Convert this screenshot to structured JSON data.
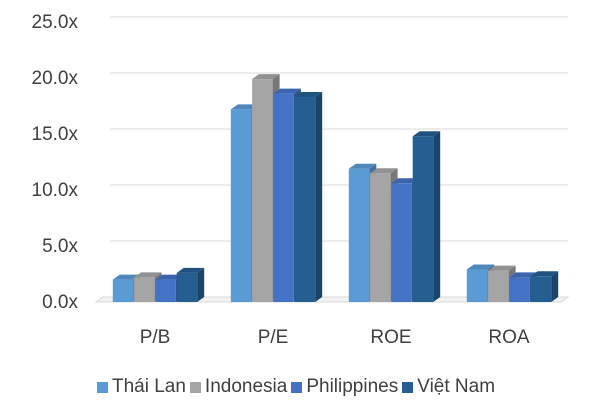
{
  "chart_data": {
    "type": "bar",
    "categories": [
      "P/B",
      "P/E",
      "ROE",
      "ROA"
    ],
    "series": [
      {
        "name": "Thái Lan",
        "values": [
          2.0,
          17.2,
          11.9,
          2.9
        ],
        "color": "#5B9BD5"
      },
      {
        "name": "Indonesia",
        "values": [
          2.2,
          19.9,
          11.5,
          2.8
        ],
        "color": "#A5A5A5"
      },
      {
        "name": "Philippines",
        "values": [
          2.0,
          18.6,
          10.6,
          2.2
        ],
        "color": "#4472C4"
      },
      {
        "name": "Việt Nam",
        "values": [
          2.6,
          18.3,
          14.8,
          2.3
        ],
        "color": "#255E91"
      }
    ],
    "yticks": [
      "0.0x",
      "5.0x",
      "10.0x",
      "15.0x",
      "20.0x",
      "25.0x"
    ],
    "ylim": [
      0,
      25
    ],
    "grid": true,
    "legend_position": "bottom"
  }
}
